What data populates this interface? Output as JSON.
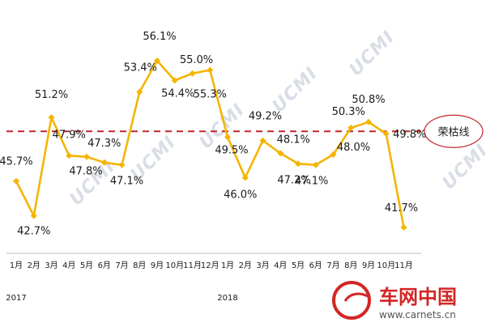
{
  "chart_data": {
    "type": "line",
    "title": "",
    "xlabel": "",
    "ylabel": "",
    "ylim": [
      38,
      60
    ],
    "categories": [
      "1月",
      "2月",
      "3月",
      "4月",
      "5月",
      "6月",
      "7月",
      "8月",
      "9月",
      "10月",
      "11月",
      "12月",
      "1月",
      "2月",
      "3月",
      "4月",
      "5月",
      "6月",
      "7月",
      "8月",
      "9月",
      "10月",
      "11月"
    ],
    "series": [
      {
        "values": [
          45.7,
          42.7,
          51.2,
          47.9,
          47.8,
          47.3,
          47.1,
          53.4,
          56.1,
          54.4,
          55.0,
          55.3,
          49.5,
          46.0,
          49.2,
          48.1,
          47.2,
          47.1,
          48.0,
          50.3,
          50.8,
          49.8,
          41.7
        ],
        "labels": [
          "45.7%",
          "42.7%",
          "51.2%",
          "47.9%",
          "47.8%",
          "47.3%",
          "47.1%",
          "53.4%",
          "56.1%",
          "54.4%",
          "55.0%",
          "55.3%",
          "49.5%",
          "46.0%",
          "49.2%",
          "48.1%",
          "47.2%",
          "47.1%",
          "48.0%",
          "50.3%",
          "50.8%",
          "49.8%",
          "41.7%"
        ],
        "color": "#f5b400"
      }
    ],
    "years": [
      "2017",
      "2018"
    ],
    "reference_line": {
      "value": 50,
      "label": "荣枯线",
      "color": "#c0262d"
    },
    "grid": false,
    "legend": "none"
  },
  "watermark": "UCMI",
  "logo": {
    "text": "车网中国",
    "url": "www.carnets.cn"
  }
}
